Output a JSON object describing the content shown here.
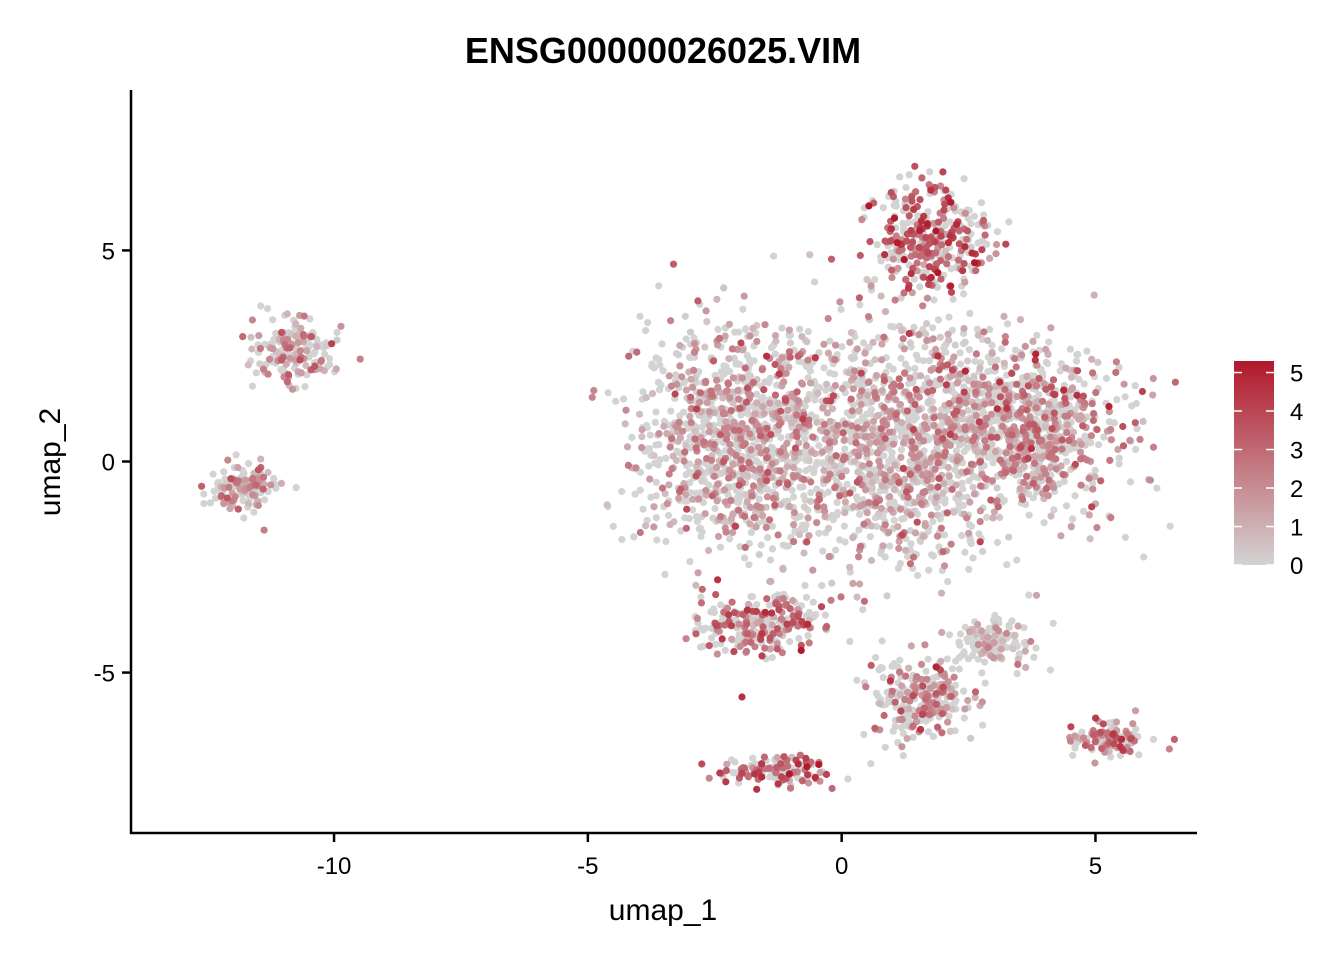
{
  "chart_data": {
    "type": "scatter",
    "title": "ENSG00000026025.VIM",
    "xlabel": "umap_1",
    "ylabel": "umap_2",
    "xlim": [
      -14.0,
      7.0
    ],
    "ylim": [
      -8.8,
      8.8
    ],
    "x_ticks": [
      -10,
      -5,
      0,
      5
    ],
    "y_ticks": [
      -5,
      0,
      5
    ],
    "x_tick_labels": [
      "-10",
      "-5",
      "0",
      "5"
    ],
    "y_tick_labels": [
      "-5",
      "0",
      "5"
    ],
    "grid": false,
    "legend_position": "right",
    "color_scale": {
      "low_color": "#d3d3d3",
      "high_color": "#b2182b",
      "min": 0,
      "max": 5.3,
      "breaks": [
        0,
        1,
        2,
        3,
        4,
        5
      ],
      "break_labels": [
        "0",
        "1",
        "2",
        "3",
        "4",
        "5"
      ]
    },
    "clusters": [
      {
        "id": "c1",
        "center": [
          -10.8,
          2.6
        ],
        "spread": [
          0.6,
          0.55
        ],
        "mean_expr": 1.2
      },
      {
        "id": "c2",
        "center": [
          -11.8,
          -0.6
        ],
        "spread": [
          0.45,
          0.4
        ],
        "mean_expr": 1.5
      },
      {
        "id": "c3",
        "center": [
          -2.0,
          0.5
        ],
        "spread": [
          1.4,
          1.9
        ],
        "mean_expr": 1.4
      },
      {
        "id": "c4",
        "center": [
          1.3,
          0.4
        ],
        "spread": [
          1.6,
          2.0
        ],
        "mean_expr": 1.3
      },
      {
        "id": "c5",
        "center": [
          3.8,
          0.7
        ],
        "spread": [
          1.2,
          1.4
        ],
        "mean_expr": 1.9
      },
      {
        "id": "c6",
        "center": [
          1.8,
          5.3
        ],
        "spread": [
          0.8,
          0.9
        ],
        "mean_expr": 3.4
      },
      {
        "id": "c7",
        "center": [
          -1.6,
          -3.9
        ],
        "spread": [
          0.9,
          0.5
        ],
        "mean_expr": 2.6
      },
      {
        "id": "c8",
        "center": [
          1.6,
          -5.6
        ],
        "spread": [
          0.7,
          0.7
        ],
        "mean_expr": 1.8
      },
      {
        "id": "c9",
        "center": [
          -1.3,
          -7.3
        ],
        "spread": [
          0.7,
          0.25
        ],
        "mean_expr": 3.0
      },
      {
        "id": "c10",
        "center": [
          5.3,
          -6.6
        ],
        "spread": [
          0.5,
          0.3
        ],
        "mean_expr": 2.4
      },
      {
        "id": "c11",
        "center": [
          3.0,
          -4.3
        ],
        "spread": [
          0.5,
          0.4
        ],
        "mean_expr": 0.5
      }
    ]
  }
}
